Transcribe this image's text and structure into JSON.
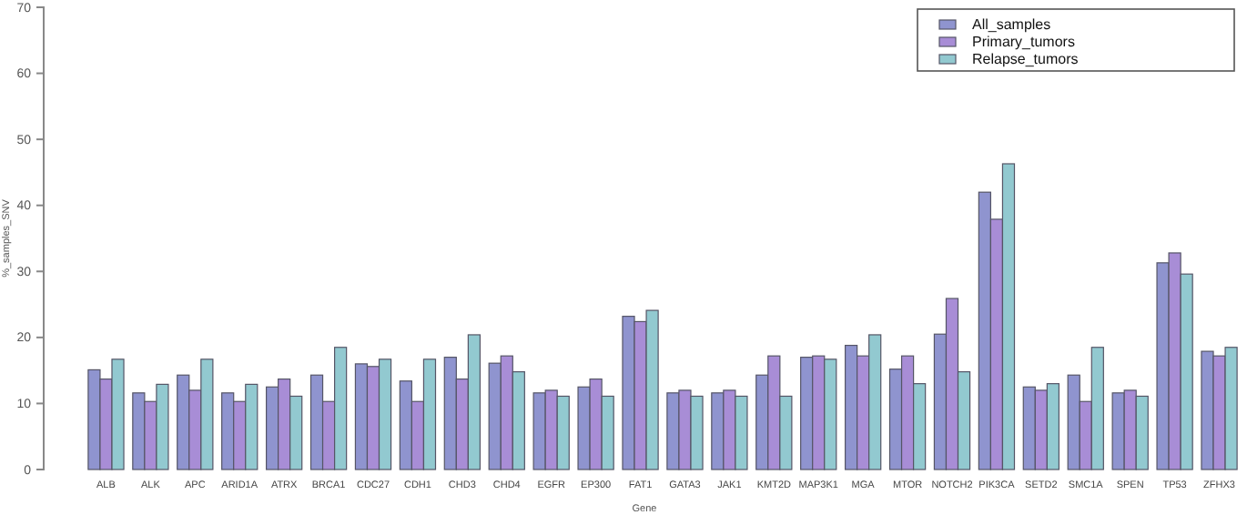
{
  "chart_data": {
    "type": "bar",
    "xlabel": "Gene",
    "ylabel": "%_samples_SNV",
    "categories": [
      "ALB",
      "ALK",
      "APC",
      "ARID1A",
      "ATRX",
      "BRCA1",
      "CDC27",
      "CDH1",
      "CHD3",
      "CHD4",
      "EGFR",
      "EP300",
      "FAT1",
      "GATA3",
      "JAK1",
      "KMT2D",
      "MAP3K1",
      "MGA",
      "MTOR",
      "NOTCH2",
      "PIK3CA",
      "SETD2",
      "SMC1A",
      "SPEN",
      "TP53",
      "ZFHX3"
    ],
    "series": [
      {
        "name": "All_samples",
        "color": "#8f94cf",
        "values": [
          15.1,
          11.6,
          14.3,
          11.6,
          12.5,
          14.3,
          16.0,
          13.4,
          17.0,
          16.1,
          11.6,
          12.5,
          23.2,
          11.6,
          11.6,
          14.3,
          17.0,
          18.8,
          15.2,
          20.5,
          42.0,
          12.5,
          14.3,
          11.6,
          31.3,
          17.9
        ]
      },
      {
        "name": "Primary_tumors",
        "color": "#a88dd6",
        "values": [
          13.7,
          10.3,
          12.0,
          10.3,
          13.7,
          10.3,
          15.6,
          10.3,
          13.7,
          17.2,
          12.0,
          13.7,
          22.4,
          12.0,
          12.0,
          17.2,
          17.2,
          17.2,
          17.2,
          25.9,
          37.9,
          12.0,
          10.3,
          12.0,
          32.8,
          17.2
        ]
      },
      {
        "name": "Relapse_tumors",
        "color": "#92c9d0",
        "values": [
          16.7,
          12.9,
          16.7,
          12.9,
          11.1,
          18.5,
          16.7,
          16.7,
          20.4,
          14.8,
          11.1,
          11.1,
          24.1,
          11.1,
          11.1,
          11.1,
          16.7,
          20.4,
          13.0,
          14.8,
          46.3,
          13.0,
          18.5,
          11.1,
          29.6,
          18.5
        ]
      }
    ],
    "ylim": [
      0,
      70
    ],
    "yticks": [
      0,
      10,
      20,
      30,
      40,
      50,
      60,
      70
    ],
    "grid": false,
    "legend": "top right"
  }
}
